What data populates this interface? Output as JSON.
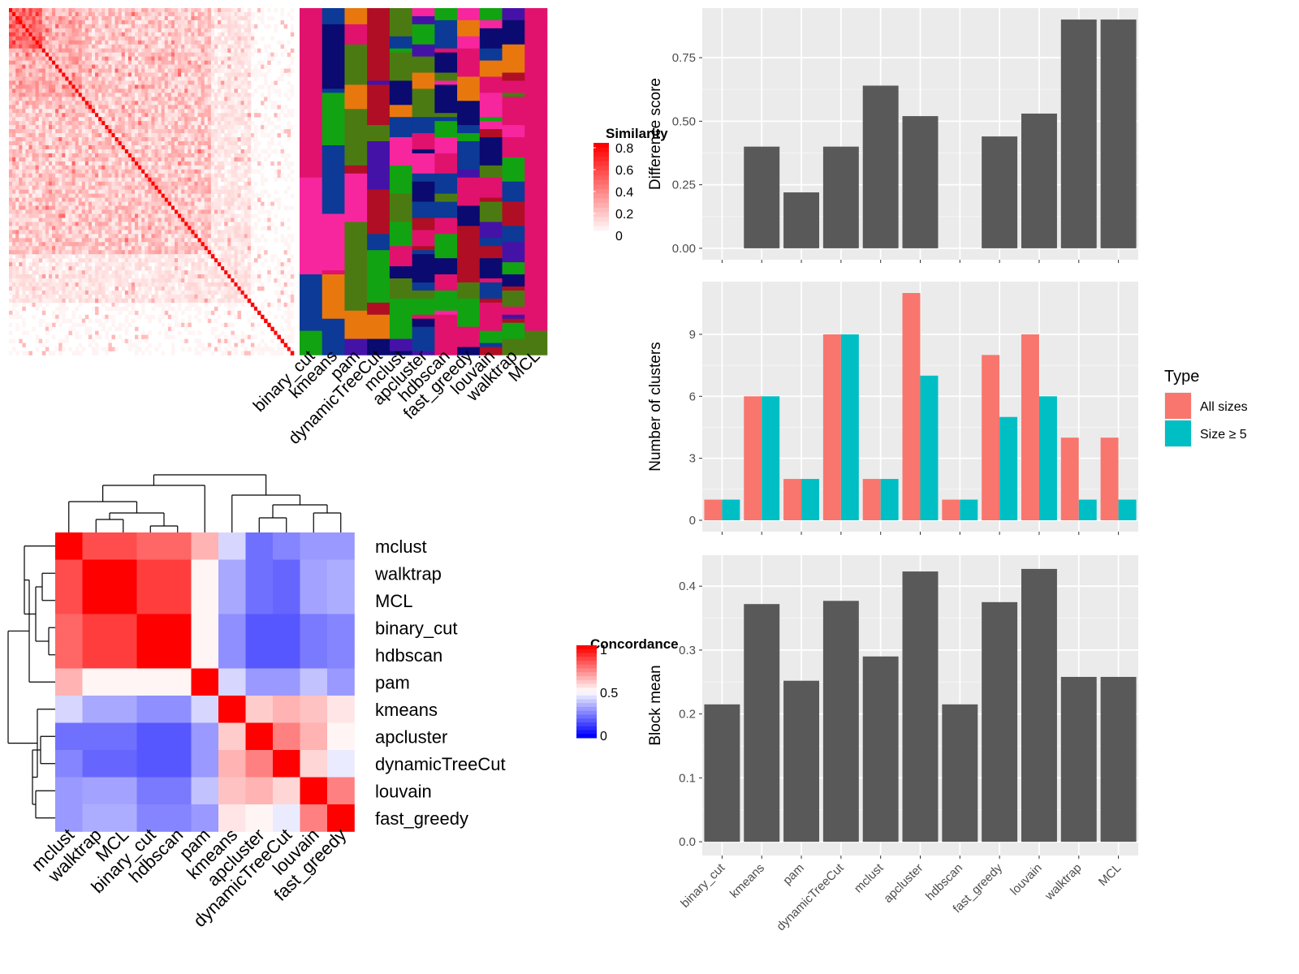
{
  "method_labels": [
    "binary_cut",
    "kmeans",
    "pam",
    "dynamicTreeCut",
    "mclust",
    "apcluster",
    "hdbscan",
    "fast_greedy",
    "louvain",
    "walktrap",
    "MCL"
  ],
  "chart_data": [
    {
      "type": "heatmap",
      "panel": "similarity-matrix",
      "legend_title": "Similarity",
      "legend_ticks": [
        "0.8",
        "0.6",
        "0.4",
        "0.2",
        "0"
      ],
      "value_range": [
        0,
        0.85
      ],
      "colors": {
        "high": "#ff0000",
        "low": "#ffffff"
      },
      "n_terms": 86
    },
    {
      "type": "heatmap",
      "panel": "cluster-assignments",
      "columns": [
        "binary_cut",
        "kmeans",
        "pam",
        "dynamicTreeCut",
        "mclust",
        "apcluster",
        "hdbscan",
        "fast_greedy",
        "louvain",
        "walktrap",
        "MCL"
      ],
      "palette": [
        "#e0126e",
        "#e8780d",
        "#4c7a12",
        "#12a312",
        "#0a0a70",
        "#0c3a96",
        "#b00e24",
        "#f7269e",
        "#4512a8"
      ]
    },
    {
      "type": "heatmap",
      "panel": "concordance",
      "legend_title": "Concordance",
      "legend_ticks": [
        "1",
        "0.5",
        "0"
      ],
      "colors": {
        "high": "#ff0000",
        "mid": "#ffffff",
        "low": "#0000ff"
      },
      "row_labels": [
        "mclust",
        "walktrap",
        "MCL",
        "binary_cut",
        "hdbscan",
        "pam",
        "kmeans",
        "apcluster",
        "dynamicTreeCut",
        "louvain",
        "fast_greedy"
      ],
      "col_labels": [
        "mclust",
        "walktrap",
        "MCL",
        "binary_cut",
        "hdbscan",
        "pam",
        "kmeans",
        "apcluster",
        "dynamicTreeCut",
        "louvain",
        "fast_greedy"
      ],
      "values": [
        [
          1.0,
          0.85,
          0.85,
          0.8,
          0.8,
          0.65,
          0.42,
          0.22,
          0.26,
          0.3,
          0.3
        ],
        [
          0.85,
          1.0,
          1.0,
          0.88,
          0.88,
          0.52,
          0.33,
          0.22,
          0.2,
          0.32,
          0.34
        ],
        [
          0.85,
          1.0,
          1.0,
          0.88,
          0.88,
          0.52,
          0.33,
          0.22,
          0.2,
          0.32,
          0.34
        ],
        [
          0.8,
          0.88,
          0.88,
          1.0,
          1.0,
          0.52,
          0.28,
          0.17,
          0.17,
          0.24,
          0.26
        ],
        [
          0.8,
          0.88,
          0.88,
          1.0,
          1.0,
          0.52,
          0.28,
          0.17,
          0.17,
          0.24,
          0.26
        ],
        [
          0.65,
          0.52,
          0.52,
          0.52,
          0.52,
          1.0,
          0.42,
          0.3,
          0.3,
          0.38,
          0.3
        ],
        [
          0.42,
          0.33,
          0.33,
          0.28,
          0.28,
          0.42,
          1.0,
          0.6,
          0.65,
          0.62,
          0.55
        ],
        [
          0.22,
          0.22,
          0.22,
          0.17,
          0.17,
          0.3,
          0.6,
          1.0,
          0.75,
          0.65,
          0.52
        ],
        [
          0.26,
          0.2,
          0.2,
          0.17,
          0.17,
          0.3,
          0.65,
          0.75,
          1.0,
          0.58,
          0.46
        ],
        [
          0.3,
          0.32,
          0.32,
          0.24,
          0.24,
          0.38,
          0.62,
          0.65,
          0.58,
          1.0,
          0.75
        ],
        [
          0.3,
          0.34,
          0.34,
          0.26,
          0.26,
          0.3,
          0.55,
          0.52,
          0.46,
          0.75,
          1.0
        ]
      ]
    },
    {
      "type": "bar",
      "panel": "difference-score",
      "categories": [
        "binary_cut",
        "kmeans",
        "pam",
        "dynamicTreeCut",
        "mclust",
        "apcluster",
        "hdbscan",
        "fast_greedy",
        "louvain",
        "walktrap",
        "MCL"
      ],
      "values": [
        0,
        0.4,
        0.22,
        0.4,
        0.64,
        0.52,
        0,
        0.44,
        0.53,
        0.9,
        0.9
      ],
      "ylabel": "Difference score",
      "yticks": [
        0.0,
        0.25,
        0.5,
        0.75
      ],
      "ytick_labels": [
        "0.00",
        "0.25",
        "0.50",
        "0.75"
      ],
      "ylim": [
        -0.045,
        0.945
      ],
      "bar_color": "#595959",
      "panel_bg": "#ebebeb"
    },
    {
      "type": "bar",
      "panel": "number-of-clusters",
      "categories": [
        "binary_cut",
        "kmeans",
        "pam",
        "dynamicTreeCut",
        "mclust",
        "apcluster",
        "hdbscan",
        "fast_greedy",
        "louvain",
        "walktrap",
        "MCL"
      ],
      "series": [
        {
          "name": "All sizes",
          "values": [
            1,
            6,
            2,
            9,
            2,
            11,
            1,
            8,
            9,
            4,
            4
          ],
          "color": "#f8766d"
        },
        {
          "name": "Size ≥ 5",
          "values": [
            1,
            6,
            2,
            9,
            2,
            7,
            1,
            5,
            6,
            1,
            1
          ],
          "color": "#00bfc4"
        }
      ],
      "ylabel": "Number of clusters",
      "yticks": [
        0,
        3,
        6,
        9
      ],
      "ytick_labels": [
        "0",
        "3",
        "6",
        "9"
      ],
      "ylim": [
        -0.55,
        11.55
      ],
      "legend_title": "Type",
      "legend_position": "right",
      "panel_bg": "#ebebeb"
    },
    {
      "type": "bar",
      "panel": "block-mean",
      "categories": [
        "binary_cut",
        "kmeans",
        "pam",
        "dynamicTreeCut",
        "mclust",
        "apcluster",
        "hdbscan",
        "fast_greedy",
        "louvain",
        "walktrap",
        "MCL"
      ],
      "values": [
        0.215,
        0.372,
        0.252,
        0.377,
        0.29,
        0.423,
        0.215,
        0.375,
        0.427,
        0.258,
        0.258
      ],
      "ylabel": "Block mean",
      "yticks": [
        0.0,
        0.1,
        0.2,
        0.3,
        0.4
      ],
      "ytick_labels": [
        "0.0",
        "0.1",
        "0.2",
        "0.3",
        "0.4"
      ],
      "ylim": [
        -0.0215,
        0.4485
      ],
      "bar_color": "#595959",
      "panel_bg": "#ebebeb"
    }
  ]
}
